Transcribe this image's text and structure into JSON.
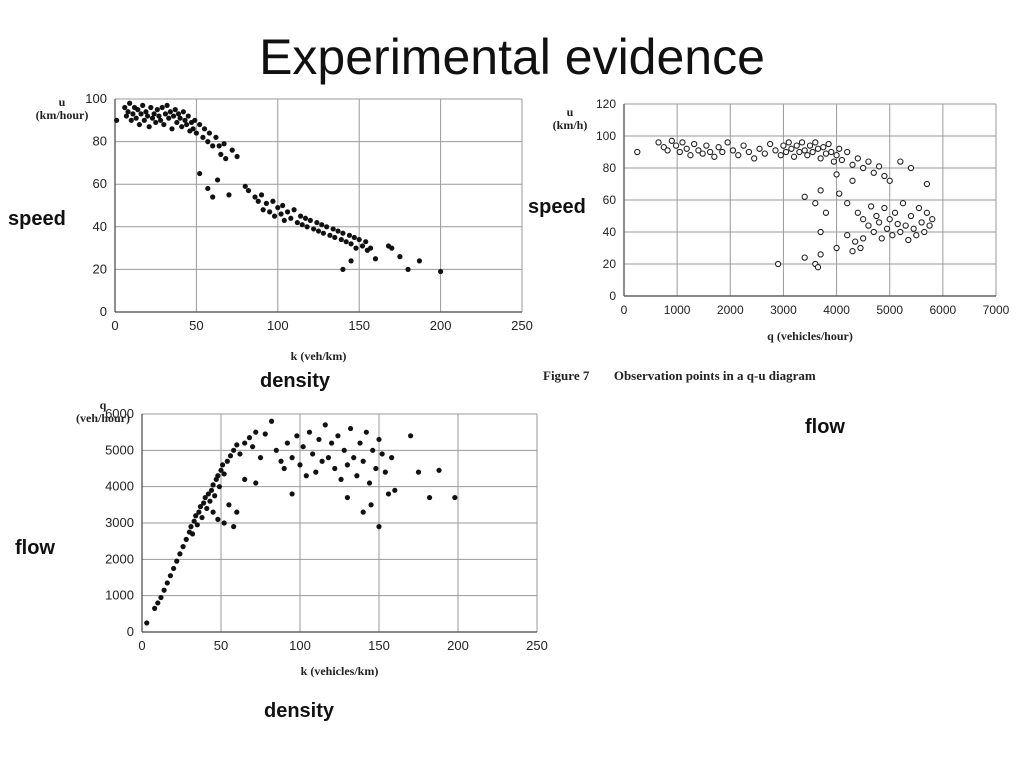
{
  "page": {
    "title": "Experimental evidence",
    "labels": {
      "speed_left": "speed",
      "density_top": "density",
      "speed_right": "speed",
      "flow_right": "flow",
      "flow_left": "flow",
      "density_bottom": "density"
    },
    "figure_caption": {
      "number": "Figure 7",
      "text": "Observation points in a q-u diagram"
    }
  },
  "chart_data": [
    {
      "id": "speed_density",
      "type": "scatter",
      "xlabel": "k (veh/km)",
      "ylabel": "u (km/hour)",
      "ylabel_lines": [
        "u",
        "(km/hour)"
      ],
      "xlim": [
        0,
        250
      ],
      "ylim": [
        0,
        100
      ],
      "xticks": [
        0,
        50,
        100,
        150,
        200,
        250
      ],
      "yticks": [
        0,
        20,
        40,
        60,
        80,
        100
      ],
      "grid": true,
      "marker": "filled",
      "points": [
        [
          1,
          90
        ],
        [
          6,
          96
        ],
        [
          7,
          92
        ],
        [
          8,
          94
        ],
        [
          9,
          98
        ],
        [
          10,
          90
        ],
        [
          11,
          93
        ],
        [
          12,
          96
        ],
        [
          13,
          91
        ],
        [
          14,
          95
        ],
        [
          15,
          88
        ],
        [
          16,
          93
        ],
        [
          17,
          97
        ],
        [
          18,
          90
        ],
        [
          19,
          94
        ],
        [
          20,
          92
        ],
        [
          21,
          87
        ],
        [
          22,
          96
        ],
        [
          23,
          91
        ],
        [
          24,
          93
        ],
        [
          25,
          89
        ],
        [
          26,
          95
        ],
        [
          27,
          92
        ],
        [
          28,
          90
        ],
        [
          29,
          96
        ],
        [
          30,
          88
        ],
        [
          31,
          93
        ],
        [
          32,
          97
        ],
        [
          33,
          91
        ],
        [
          34,
          94
        ],
        [
          35,
          86
        ],
        [
          36,
          92
        ],
        [
          37,
          95
        ],
        [
          38,
          89
        ],
        [
          39,
          93
        ],
        [
          40,
          91
        ],
        [
          41,
          87
        ],
        [
          42,
          94
        ],
        [
          43,
          90
        ],
        [
          44,
          88
        ],
        [
          45,
          92
        ],
        [
          46,
          85
        ],
        [
          47,
          89
        ],
        [
          48,
          86
        ],
        [
          49,
          90
        ],
        [
          50,
          84
        ],
        [
          52,
          88
        ],
        [
          54,
          82
        ],
        [
          55,
          86
        ],
        [
          57,
          80
        ],
        [
          58,
          84
        ],
        [
          60,
          78
        ],
        [
          62,
          82
        ],
        [
          64,
          78
        ],
        [
          65,
          74
        ],
        [
          67,
          79
        ],
        [
          68,
          72
        ],
        [
          72,
          76
        ],
        [
          75,
          73
        ],
        [
          52,
          65
        ],
        [
          57,
          58
        ],
        [
          60,
          54
        ],
        [
          63,
          62
        ],
        [
          70,
          55
        ],
        [
          80,
          59
        ],
        [
          82,
          57
        ],
        [
          86,
          54
        ],
        [
          88,
          52
        ],
        [
          90,
          55
        ],
        [
          91,
          48
        ],
        [
          93,
          51
        ],
        [
          95,
          47
        ],
        [
          97,
          52
        ],
        [
          98,
          45
        ],
        [
          100,
          49
        ],
        [
          102,
          46
        ],
        [
          103,
          50
        ],
        [
          104,
          43
        ],
        [
          106,
          47
        ],
        [
          108,
          44
        ],
        [
          110,
          48
        ],
        [
          112,
          42
        ],
        [
          114,
          45
        ],
        [
          115,
          41
        ],
        [
          117,
          44
        ],
        [
          118,
          40
        ],
        [
          120,
          43
        ],
        [
          122,
          39
        ],
        [
          124,
          42
        ],
        [
          125,
          38
        ],
        [
          127,
          41
        ],
        [
          128,
          37
        ],
        [
          130,
          40
        ],
        [
          132,
          36
        ],
        [
          134,
          39
        ],
        [
          135,
          35
        ],
        [
          137,
          38
        ],
        [
          139,
          34
        ],
        [
          140,
          37
        ],
        [
          142,
          33
        ],
        [
          144,
          36
        ],
        [
          145,
          32
        ],
        [
          147,
          35
        ],
        [
          148,
          30
        ],
        [
          150,
          34
        ],
        [
          152,
          31
        ],
        [
          154,
          33
        ],
        [
          155,
          29
        ],
        [
          157,
          30
        ],
        [
          140,
          20
        ],
        [
          145,
          24
        ],
        [
          160,
          25
        ],
        [
          168,
          31
        ],
        [
          170,
          30
        ],
        [
          175,
          26
        ],
        [
          180,
          20
        ],
        [
          187,
          24
        ],
        [
          200,
          19
        ]
      ]
    },
    {
      "id": "speed_flow",
      "type": "scatter",
      "xlabel": "q (vehicles/hour)",
      "ylabel": "u (km/h)",
      "ylabel_lines": [
        "u",
        "(km/h)"
      ],
      "xlim": [
        0,
        7000
      ],
      "ylim": [
        0,
        120
      ],
      "xticks": [
        0,
        1000,
        2000,
        3000,
        4000,
        5000,
        6000,
        7000
      ],
      "yticks": [
        0,
        20,
        40,
        60,
        80,
        100,
        120
      ],
      "grid": true,
      "marker": "hollow",
      "points": [
        [
          250,
          90
        ],
        [
          650,
          96
        ],
        [
          750,
          93
        ],
        [
          820,
          91
        ],
        [
          900,
          97
        ],
        [
          980,
          94
        ],
        [
          1050,
          90
        ],
        [
          1100,
          96
        ],
        [
          1180,
          92
        ],
        [
          1250,
          88
        ],
        [
          1320,
          95
        ],
        [
          1400,
          91
        ],
        [
          1480,
          89
        ],
        [
          1550,
          94
        ],
        [
          1620,
          90
        ],
        [
          1700,
          87
        ],
        [
          1780,
          93
        ],
        [
          1850,
          90
        ],
        [
          1950,
          96
        ],
        [
          2050,
          91
        ],
        [
          2150,
          88
        ],
        [
          2250,
          94
        ],
        [
          2350,
          90
        ],
        [
          2450,
          86
        ],
        [
          2550,
          92
        ],
        [
          2650,
          89
        ],
        [
          2750,
          95
        ],
        [
          2850,
          91
        ],
        [
          2950,
          88
        ],
        [
          3000,
          94
        ],
        [
          3050,
          90
        ],
        [
          3100,
          96
        ],
        [
          3150,
          92
        ],
        [
          3200,
          87
        ],
        [
          3250,
          94
        ],
        [
          3300,
          90
        ],
        [
          3350,
          96
        ],
        [
          3400,
          91
        ],
        [
          3450,
          88
        ],
        [
          3500,
          94
        ],
        [
          3550,
          90
        ],
        [
          3600,
          96
        ],
        [
          3650,
          92
        ],
        [
          3700,
          86
        ],
        [
          3750,
          93
        ],
        [
          3800,
          89
        ],
        [
          3850,
          95
        ],
        [
          3900,
          90
        ],
        [
          3950,
          84
        ],
        [
          4000,
          88
        ],
        [
          4050,
          92
        ],
        [
          4100,
          85
        ],
        [
          4200,
          90
        ],
        [
          4300,
          82
        ],
        [
          4400,
          86
        ],
        [
          4500,
          80
        ],
        [
          4600,
          84
        ],
        [
          4700,
          77
        ],
        [
          4800,
          81
        ],
        [
          4900,
          75
        ],
        [
          5000,
          72
        ],
        [
          5200,
          84
        ],
        [
          5400,
          80
        ],
        [
          5700,
          70
        ],
        [
          3400,
          62
        ],
        [
          3600,
          58
        ],
        [
          3700,
          66
        ],
        [
          3800,
          52
        ],
        [
          4000,
          76
        ],
        [
          4050,
          64
        ],
        [
          4200,
          58
        ],
        [
          4300,
          72
        ],
        [
          4400,
          52
        ],
        [
          4500,
          48
        ],
        [
          4600,
          44
        ],
        [
          4650,
          56
        ],
        [
          4700,
          40
        ],
        [
          4750,
          50
        ],
        [
          4800,
          46
        ],
        [
          4850,
          36
        ],
        [
          4900,
          55
        ],
        [
          4950,
          42
        ],
        [
          5000,
          48
        ],
        [
          5050,
          38
        ],
        [
          5100,
          52
        ],
        [
          5150,
          45
        ],
        [
          5200,
          40
        ],
        [
          5250,
          58
        ],
        [
          5300,
          44
        ],
        [
          5350,
          35
        ],
        [
          5400,
          50
        ],
        [
          5450,
          42
        ],
        [
          5500,
          38
        ],
        [
          5550,
          55
        ],
        [
          5600,
          46
        ],
        [
          5650,
          40
        ],
        [
          5700,
          52
        ],
        [
          5750,
          44
        ],
        [
          5800,
          48
        ],
        [
          4350,
          34
        ],
        [
          4450,
          30
        ],
        [
          4500,
          36
        ],
        [
          4200,
          38
        ],
        [
          4000,
          30
        ],
        [
          3700,
          40
        ],
        [
          3600,
          20
        ],
        [
          3400,
          24
        ],
        [
          2900,
          20
        ],
        [
          3700,
          26
        ],
        [
          3650,
          18
        ],
        [
          4300,
          28
        ]
      ]
    },
    {
      "id": "flow_density",
      "type": "scatter",
      "xlabel": "k (vehicles/km)",
      "ylabel": "q (veh/hour)",
      "ylabel_lines": [
        "q",
        "(veh/hour)"
      ],
      "xlim": [
        0,
        250
      ],
      "ylim": [
        0,
        6000
      ],
      "xticks": [
        0,
        50,
        100,
        150,
        200,
        250
      ],
      "yticks": [
        0,
        1000,
        2000,
        3000,
        4000,
        5000,
        6000
      ],
      "grid": true,
      "marker": "filled",
      "points": [
        [
          3,
          250
        ],
        [
          8,
          650
        ],
        [
          10,
          800
        ],
        [
          12,
          950
        ],
        [
          14,
          1150
        ],
        [
          16,
          1350
        ],
        [
          18,
          1550
        ],
        [
          20,
          1750
        ],
        [
          22,
          1950
        ],
        [
          24,
          2150
        ],
        [
          26,
          2350
        ],
        [
          28,
          2550
        ],
        [
          30,
          2750
        ],
        [
          31,
          2900
        ],
        [
          32,
          2700
        ],
        [
          33,
          3050
        ],
        [
          34,
          3200
        ],
        [
          35,
          2950
        ],
        [
          36,
          3300
        ],
        [
          37,
          3450
        ],
        [
          38,
          3150
        ],
        [
          39,
          3550
        ],
        [
          40,
          3700
        ],
        [
          41,
          3400
        ],
        [
          42,
          3800
        ],
        [
          43,
          3600
        ],
        [
          44,
          3900
        ],
        [
          45,
          4050
        ],
        [
          46,
          3750
        ],
        [
          47,
          4200
        ],
        [
          48,
          4300
        ],
        [
          49,
          4000
        ],
        [
          50,
          4450
        ],
        [
          51,
          4600
        ],
        [
          52,
          4350
        ],
        [
          54,
          4700
        ],
        [
          56,
          4850
        ],
        [
          58,
          5000
        ],
        [
          60,
          5150
        ],
        [
          62,
          4900
        ],
        [
          65,
          5200
        ],
        [
          68,
          5350
        ],
        [
          70,
          5100
        ],
        [
          72,
          5500
        ],
        [
          75,
          4800
        ],
        [
          78,
          5450
        ],
        [
          82,
          5800
        ],
        [
          45,
          3300
        ],
        [
          48,
          3100
        ],
        [
          52,
          3000
        ],
        [
          55,
          3500
        ],
        [
          58,
          2900
        ],
        [
          60,
          3300
        ],
        [
          65,
          4200
        ],
        [
          72,
          4100
        ],
        [
          85,
          5000
        ],
        [
          88,
          4700
        ],
        [
          90,
          4500
        ],
        [
          92,
          5200
        ],
        [
          95,
          4800
        ],
        [
          98,
          5400
        ],
        [
          100,
          4600
        ],
        [
          102,
          5100
        ],
        [
          104,
          4300
        ],
        [
          106,
          5500
        ],
        [
          108,
          4900
        ],
        [
          110,
          4400
        ],
        [
          112,
          5300
        ],
        [
          114,
          4700
        ],
        [
          116,
          5700
        ],
        [
          118,
          4800
        ],
        [
          120,
          5200
        ],
        [
          122,
          4500
        ],
        [
          124,
          5400
        ],
        [
          126,
          4200
        ],
        [
          128,
          5000
        ],
        [
          130,
          4600
        ],
        [
          132,
          5600
        ],
        [
          134,
          4800
        ],
        [
          136,
          4300
        ],
        [
          138,
          5200
        ],
        [
          140,
          4700
        ],
        [
          142,
          5500
        ],
        [
          144,
          4100
        ],
        [
          146,
          5000
        ],
        [
          148,
          4500
        ],
        [
          150,
          5300
        ],
        [
          152,
          4900
        ],
        [
          154,
          4400
        ],
        [
          156,
          3800
        ],
        [
          158,
          4800
        ],
        [
          160,
          3900
        ],
        [
          95,
          3800
        ],
        [
          130,
          3700
        ],
        [
          140,
          3300
        ],
        [
          145,
          3500
        ],
        [
          150,
          2900
        ],
        [
          170,
          5400
        ],
        [
          175,
          4400
        ],
        [
          182,
          3700
        ],
        [
          188,
          4450
        ],
        [
          198,
          3700
        ]
      ]
    }
  ]
}
